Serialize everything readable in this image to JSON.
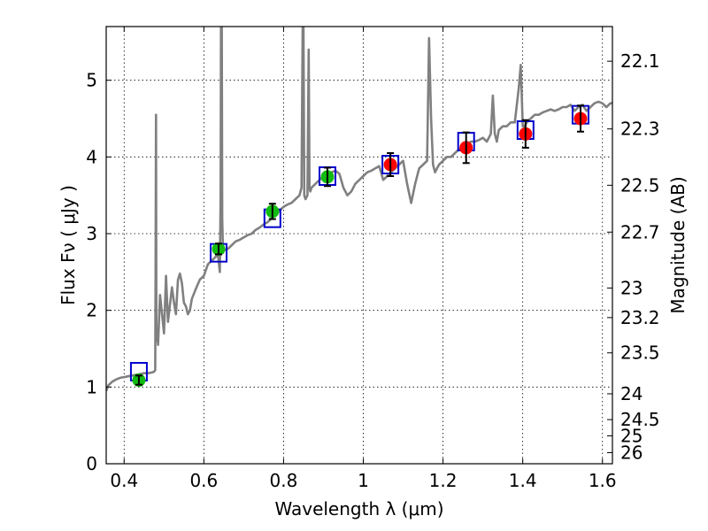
{
  "chart_data": {
    "type": "scatter",
    "xlabel": "Wavelength  λ (μm)",
    "ylabel": "Flux  Fν  ( μJy )",
    "y2label": "Magnitude (AB)",
    "xlim": [
      0.355,
      1.625
    ],
    "ylim": [
      0,
      5.7
    ],
    "xticks": [
      0.4,
      0.6,
      0.8,
      1,
      1.2,
      1.4,
      1.6
    ],
    "xtick_labels": [
      "0.4",
      "0.6",
      "0.8",
      "1",
      "1.2",
      "1.4",
      "1.6"
    ],
    "yticks": [
      0,
      1,
      2,
      3,
      4,
      5
    ],
    "ytick_labels": [
      "0",
      "1",
      "2",
      "3",
      "4",
      "5"
    ],
    "mag_ticks": [
      "22.1",
      "22.3",
      "22.5",
      "22.7",
      "23",
      "23.2",
      "23.5",
      "24",
      "24.5",
      "25",
      "26"
    ],
    "grid": true,
    "colors": {
      "spectrum": "#808080",
      "model_box": "#0000cc",
      "green_points": "#11bb11",
      "red_points": "#ff0000",
      "errorbar": "#000000"
    },
    "spectrum": {
      "name": "",
      "x": [
        0.355,
        0.36,
        0.37,
        0.38,
        0.39,
        0.4,
        0.41,
        0.42,
        0.43,
        0.44,
        0.45,
        0.46,
        0.47,
        0.475,
        0.478,
        0.479,
        0.48,
        0.481,
        0.483,
        0.485,
        0.49,
        0.495,
        0.5,
        0.505,
        0.51,
        0.52,
        0.525,
        0.53,
        0.535,
        0.54,
        0.545,
        0.55,
        0.555,
        0.56,
        0.565,
        0.57,
        0.58,
        0.59,
        0.6,
        0.61,
        0.62,
        0.63,
        0.635,
        0.64,
        0.642,
        0.643,
        0.645,
        0.646,
        0.648,
        0.65,
        0.66,
        0.67,
        0.68,
        0.69,
        0.7,
        0.71,
        0.72,
        0.73,
        0.74,
        0.75,
        0.76,
        0.77,
        0.78,
        0.79,
        0.8,
        0.81,
        0.82,
        0.83,
        0.84,
        0.845,
        0.848,
        0.85,
        0.852,
        0.855,
        0.86,
        0.863,
        0.865,
        0.867,
        0.87,
        0.88,
        0.89,
        0.9,
        0.91,
        0.92,
        0.93,
        0.94,
        0.95,
        0.96,
        0.97,
        0.98,
        0.99,
        1.0,
        1.01,
        1.02,
        1.03,
        1.04,
        1.05,
        1.06,
        1.07,
        1.08,
        1.09,
        1.1,
        1.11,
        1.12,
        1.13,
        1.14,
        1.15,
        1.16,
        1.165,
        1.17,
        1.175,
        1.18,
        1.185,
        1.19,
        1.2,
        1.21,
        1.22,
        1.23,
        1.24,
        1.25,
        1.26,
        1.27,
        1.28,
        1.29,
        1.3,
        1.31,
        1.32,
        1.325,
        1.33,
        1.335,
        1.34,
        1.35,
        1.36,
        1.37,
        1.38,
        1.39,
        1.395,
        1.4,
        1.405,
        1.41,
        1.42,
        1.43,
        1.44,
        1.45,
        1.46,
        1.47,
        1.48,
        1.49,
        1.5,
        1.51,
        1.52,
        1.53,
        1.54,
        1.55,
        1.56,
        1.57,
        1.58,
        1.59,
        1.6,
        1.61,
        1.62,
        1.625
      ],
      "y": [
        0.95,
        1.02,
        1.07,
        1.1,
        1.12,
        1.13,
        1.14,
        1.15,
        1.16,
        1.17,
        1.18,
        1.18,
        1.19,
        1.2,
        1.22,
        2.5,
        4.55,
        1.6,
        1.75,
        1.55,
        2.2,
        1.95,
        1.7,
        2.45,
        1.85,
        2.3,
        2.1,
        1.95,
        2.4,
        2.48,
        2.35,
        2.1,
        2.05,
        1.95,
        2.0,
        2.15,
        2.28,
        2.4,
        2.45,
        2.6,
        2.65,
        2.7,
        2.75,
        2.5,
        3.5,
        5.7,
        5.7,
        3.2,
        2.75,
        2.78,
        2.8,
        2.85,
        2.9,
        2.92,
        2.95,
        2.98,
        3.0,
        3.05,
        3.08,
        3.12,
        3.15,
        3.2,
        3.25,
        3.3,
        3.35,
        3.38,
        3.4,
        3.45,
        3.5,
        3.6,
        5.7,
        5.7,
        3.5,
        3.45,
        3.5,
        5.4,
        3.6,
        3.55,
        3.6,
        3.65,
        3.7,
        3.75,
        3.75,
        3.8,
        3.82,
        3.78,
        3.6,
        3.5,
        3.55,
        3.65,
        3.7,
        3.75,
        3.8,
        3.82,
        3.85,
        3.88,
        3.7,
        3.75,
        3.8,
        3.85,
        3.9,
        3.95,
        3.65,
        3.4,
        3.65,
        3.85,
        3.9,
        3.95,
        5.55,
        4.5,
        3.9,
        3.8,
        3.85,
        3.9,
        3.95,
        4.0,
        4.0,
        4.05,
        4.1,
        4.1,
        4.15,
        4.2,
        4.2,
        4.22,
        4.25,
        4.2,
        4.3,
        4.8,
        4.3,
        4.2,
        4.35,
        4.4,
        4.4,
        4.45,
        4.45,
        4.9,
        5.2,
        4.4,
        4.4,
        4.45,
        4.5,
        4.55,
        4.55,
        4.58,
        4.6,
        4.62,
        4.6,
        4.62,
        4.65,
        4.65,
        4.68,
        4.6,
        4.65,
        4.68,
        4.6,
        4.65,
        4.7,
        4.72,
        4.7,
        4.65,
        4.7,
        4.7
      ]
    },
    "series": [
      {
        "x": [
          0.437,
          0.637,
          0.772,
          0.91,
          1.068,
          1.258,
          1.407,
          1.545
        ],
        "y": [
          1.2,
          2.75,
          3.2,
          3.75,
          3.9,
          4.2,
          4.35,
          4.55
        ],
        "marker": "square",
        "color": "#0000cc"
      },
      {
        "x": [
          0.437,
          0.637,
          0.772,
          0.91
        ],
        "y": [
          1.09,
          2.8,
          3.29,
          3.74
        ],
        "yerr": [
          0.06,
          0.07,
          0.1,
          0.12
        ],
        "marker": "circle",
        "color": "#11bb11"
      },
      {
        "x": [
          1.068,
          1.258,
          1.407,
          1.545
        ],
        "y": [
          3.9,
          4.12,
          4.3,
          4.5
        ],
        "yerr": [
          0.15,
          0.2,
          0.18,
          0.17
        ],
        "marker": "circle",
        "color": "#ff0000"
      }
    ]
  }
}
